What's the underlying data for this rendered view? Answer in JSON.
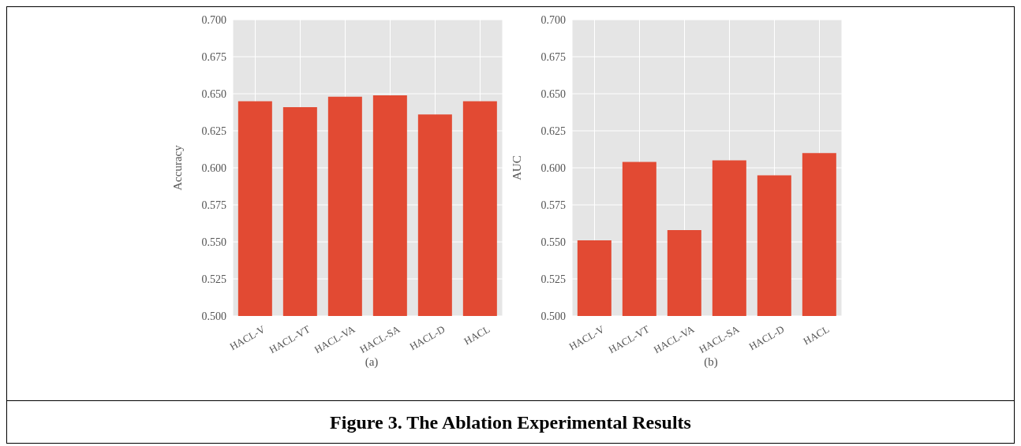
{
  "chart_data": [
    {
      "type": "bar",
      "xlabel": "(a)",
      "ylabel": "Accuracy",
      "categories": [
        "HACL-V",
        "HACL-VT",
        "HACL-VA",
        "HACL-SA",
        "HACL-D",
        "HACL"
      ],
      "values": [
        0.645,
        0.641,
        0.648,
        0.649,
        0.636,
        0.645
      ],
      "color": "#e24a33",
      "ylim": [
        0.5,
        0.7
      ],
      "yticks": [
        {
          "value": 0.5,
          "label": "0.500"
        },
        {
          "value": 0.525,
          "label": "0.525"
        },
        {
          "value": 0.55,
          "label": "0.550"
        },
        {
          "value": 0.575,
          "label": "0.575"
        },
        {
          "value": 0.6,
          "label": "0.600"
        },
        {
          "value": 0.625,
          "label": "0.625"
        },
        {
          "value": 0.65,
          "label": "0.650"
        },
        {
          "value": 0.675,
          "label": "0.675"
        },
        {
          "value": 0.7,
          "label": "0.700"
        }
      ],
      "grid": true,
      "annotations": [
        "Figure 3. The Ablation Experimental Results"
      ]
    },
    {
      "type": "bar",
      "xlabel": "(b)",
      "ylabel": "AUC",
      "categories": [
        "HACL-V",
        "HACL-VT",
        "HACL-VA",
        "HACL-SA",
        "HACL-D",
        "HACL"
      ],
      "values": [
        0.551,
        0.604,
        0.558,
        0.605,
        0.595,
        0.61
      ],
      "color": "#e24a33",
      "ylim": [
        0.5,
        0.7
      ],
      "yticks": [
        {
          "value": 0.5,
          "label": "0.500"
        },
        {
          "value": 0.525,
          "label": "0.525"
        },
        {
          "value": 0.55,
          "label": "0.550"
        },
        {
          "value": 0.575,
          "label": "0.575"
        },
        {
          "value": 0.6,
          "label": "0.600"
        },
        {
          "value": 0.625,
          "label": "0.625"
        },
        {
          "value": 0.65,
          "label": "0.650"
        },
        {
          "value": 0.675,
          "label": "0.675"
        },
        {
          "value": 0.7,
          "label": "0.700"
        }
      ],
      "grid": true
    }
  ]
}
